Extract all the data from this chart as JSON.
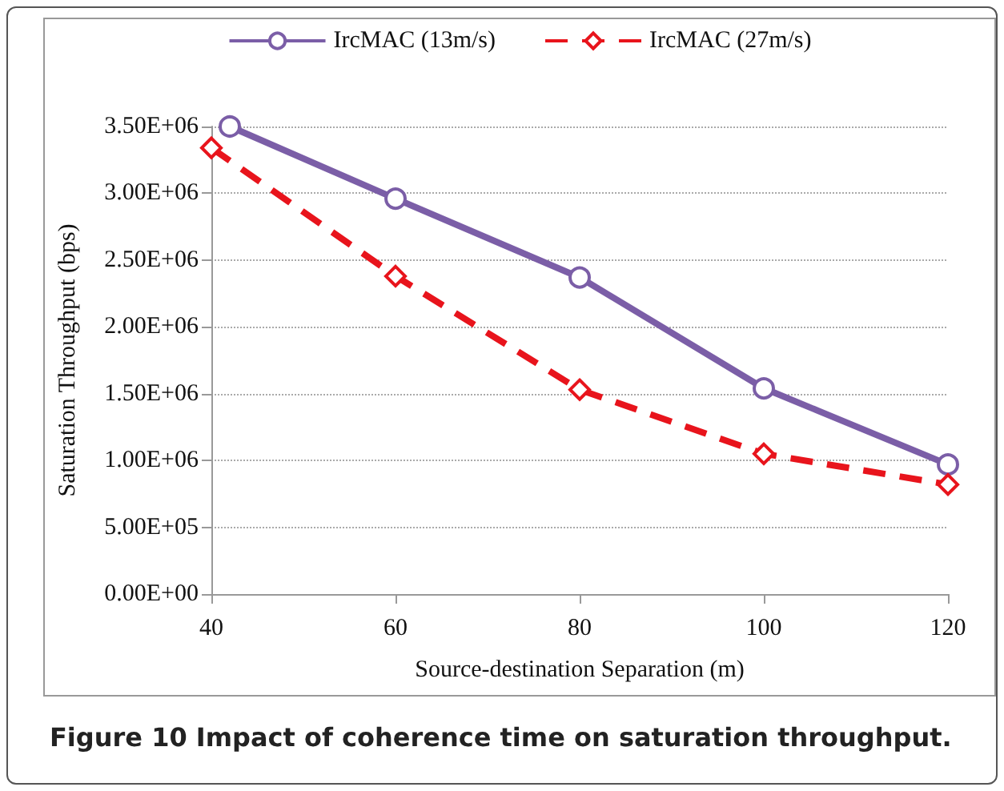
{
  "chart_data": {
    "type": "line",
    "xlabel": "Source-destination Separation (m)",
    "ylabel": "Saturation Throughput (bps)",
    "annotations": [
      "Figure 10 Impact of coherence time on saturation throughput."
    ],
    "series": [
      {
        "name": "IrcMAC (13m/s)",
        "color": "#7b5ea7",
        "marker": "circle",
        "line_style": "solid",
        "x": [
          42,
          60,
          80,
          100,
          120
        ],
        "values": [
          3500000,
          2960000,
          2370000,
          1540000,
          970000
        ]
      },
      {
        "name": "IrcMAC (27m/s)",
        "color": "#e8141c",
        "marker": "diamond",
        "line_style": "dashed",
        "x": [
          40,
          60,
          80,
          100,
          120
        ],
        "values": [
          3340000,
          2380000,
          1530000,
          1050000,
          820000
        ]
      }
    ],
    "xlim": [
      40,
      120
    ],
    "xticks": [
      40,
      60,
      80,
      100,
      120
    ],
    "ylim": [
      0,
      3500000
    ],
    "yticks": [
      {
        "value": 0,
        "label": "0.00E+00"
      },
      {
        "value": 500000,
        "label": "5.00E+05"
      },
      {
        "value": 1000000,
        "label": "1.00E+06"
      },
      {
        "value": 1500000,
        "label": "1.50E+06"
      },
      {
        "value": 2000000,
        "label": "2.00E+06"
      },
      {
        "value": 2500000,
        "label": "2.50E+06"
      },
      {
        "value": 3000000,
        "label": "3.00E+06"
      },
      {
        "value": 3500000,
        "label": "3.50E+06"
      }
    ],
    "grid": "y",
    "legend": "top"
  }
}
